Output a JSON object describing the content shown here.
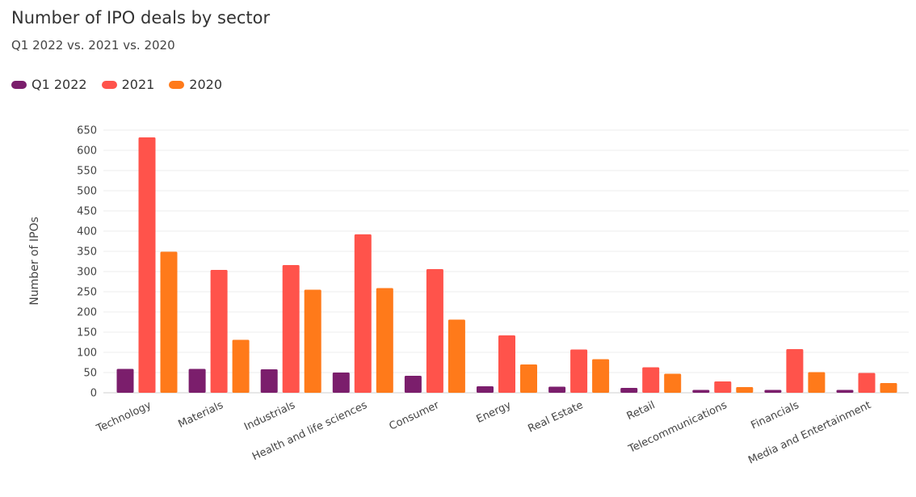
{
  "chart_data": {
    "type": "bar",
    "title": "Number of IPO deals by sector",
    "subtitle": "Q1 2022 vs. 2021 vs. 2020",
    "ylabel": "Number of IPOs",
    "xlabel": "",
    "ylim": [
      0,
      650
    ],
    "yticks": [
      0,
      50,
      100,
      150,
      200,
      250,
      300,
      350,
      400,
      450,
      500,
      550,
      600,
      650
    ],
    "grid": true,
    "legend_position": "top-left",
    "categories": [
      "Technology",
      "Materials",
      "Industrials",
      "Health and life sciences",
      "Consumer",
      "Energy",
      "Real Estate",
      "Retail",
      "Telecommunications",
      "Financials",
      "Media and Entertainment"
    ],
    "series": [
      {
        "name": "Q1 2022",
        "color": "#7b1e6c",
        "values": [
          59,
          59,
          58,
          50,
          42,
          16,
          15,
          12,
          7,
          7,
          7
        ]
      },
      {
        "name": "2021",
        "color": "#ff534b",
        "values": [
          632,
          304,
          316,
          392,
          306,
          142,
          107,
          63,
          28,
          108,
          49
        ]
      },
      {
        "name": "2020",
        "color": "#ff7a1a",
        "values": [
          349,
          131,
          255,
          259,
          181,
          70,
          83,
          47,
          14,
          51,
          24
        ]
      }
    ]
  }
}
